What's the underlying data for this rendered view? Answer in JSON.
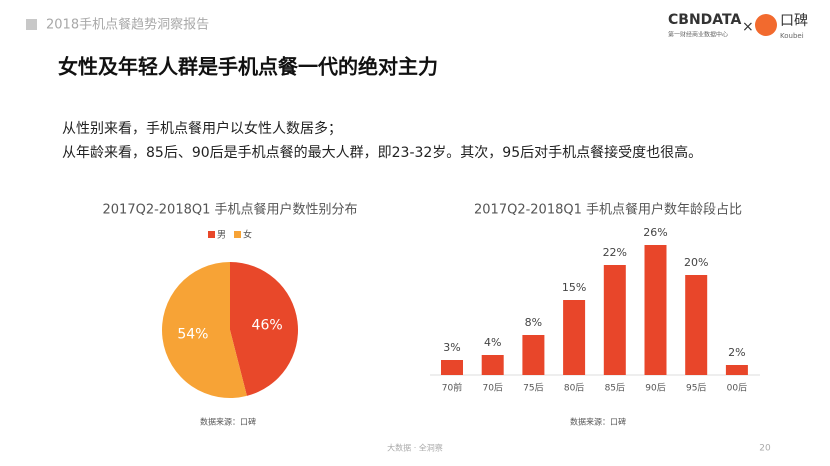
{
  "header": {
    "report_title": "2018手机点餐趋势洞察报告",
    "brand": "CBNDATA",
    "brand_sub": "第一财经商业数据中心",
    "times": "×",
    "partner": "口碑",
    "partner_sub": "Koubei"
  },
  "title": "女性及年轻人群是手机点餐一代的绝对主力",
  "body": [
    "从性别来看，手机点餐用户以女性人数居多；",
    "从年龄来看，85后、90后是手机点餐的最大人群，即23-32岁。其次，95后对手机点餐接受度也很高。"
  ],
  "chart_data": [
    {
      "type": "pie",
      "title": "2017Q2-2018Q1 手机点餐用户数性别分布",
      "categories": [
        "男",
        "女"
      ],
      "values": [
        46,
        54
      ],
      "value_labels": [
        "46%",
        "54%"
      ],
      "colors": [
        "#e8482a",
        "#f7a336"
      ],
      "legend": "top",
      "source": "数据来源：口碑"
    },
    {
      "type": "bar",
      "title": "2017Q2-2018Q1 手机点餐用户数年龄段占比",
      "categories": [
        "70前",
        "70后",
        "75后",
        "80后",
        "85后",
        "90后",
        "95后",
        "00后"
      ],
      "values": [
        3,
        4,
        8,
        15,
        22,
        26,
        20,
        2
      ],
      "value_labels": [
        "3%",
        "4%",
        "8%",
        "15%",
        "22%",
        "26%",
        "20%",
        "2%"
      ],
      "color": "#e8462a",
      "source": "数据来源：口碑"
    }
  ],
  "footer": {
    "text": "大数据 · 全洞察",
    "page": "20"
  }
}
